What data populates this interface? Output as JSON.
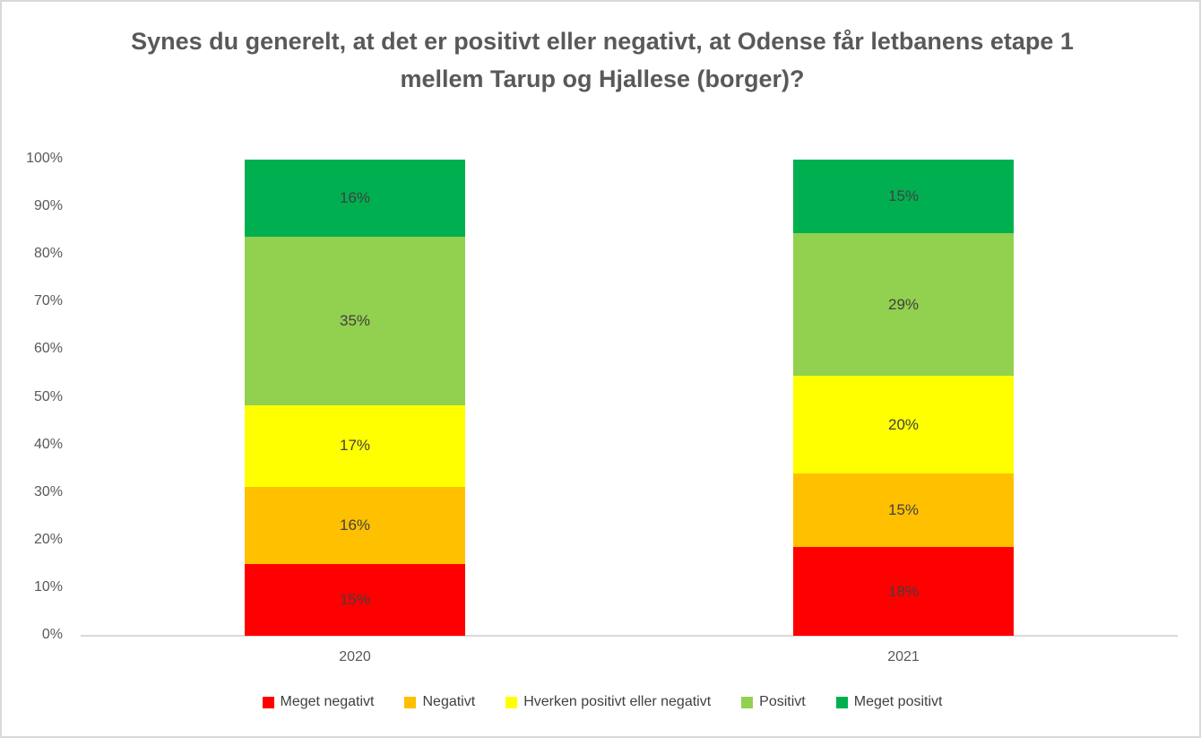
{
  "title": "Synes du generelt, at det er positivt eller negativt, at Odense får letbanens etape 1 mellem Tarup og Hjallese (borger)?",
  "colors": {
    "meget_negativt": "#FF0000",
    "negativt": "#FFC000",
    "hverken": "#FFFF00",
    "positivt": "#92D050",
    "meget_positivt": "#00B050",
    "axis_line": "#d9d9d9",
    "tick_text": "#595959",
    "label_text": "#404040",
    "title_text": "#595959"
  },
  "chart_data": {
    "type": "bar",
    "subtype": "stacked-100-percent-column",
    "title": "Synes du generelt, at det er positivt eller negativt, at Odense får letbanens etape 1 mellem Tarup og Hjallese (borger)?",
    "categories": [
      "2020",
      "2021"
    ],
    "series": [
      {
        "name": "Meget negativt",
        "color": "#FF0000",
        "values": [
          15,
          18
        ],
        "labels": [
          "15%",
          "18%"
        ]
      },
      {
        "name": "Negativt",
        "color": "#FFC000",
        "values": [
          16,
          15
        ],
        "labels": [
          "16%",
          "15%"
        ]
      },
      {
        "name": "Hverken positivt eller negativt",
        "color": "#FFFF00",
        "values": [
          17,
          20
        ],
        "labels": [
          "17%",
          "20%"
        ]
      },
      {
        "name": "Positivt",
        "color": "#92D050",
        "values": [
          35,
          29
        ],
        "labels": [
          "35%",
          "29%"
        ]
      },
      {
        "name": "Meget positivt",
        "color": "#00B050",
        "values": [
          16,
          15
        ],
        "labels": [
          "16%",
          "15%"
        ]
      }
    ],
    "xlabel": "",
    "ylabel": "",
    "ylim": [
      0,
      100
    ],
    "yticks": [
      "0%",
      "10%",
      "20%",
      "30%",
      "40%",
      "50%",
      "60%",
      "70%",
      "80%",
      "90%",
      "100%"
    ],
    "grid": false,
    "data_labels": true,
    "legend_position": "bottom"
  }
}
